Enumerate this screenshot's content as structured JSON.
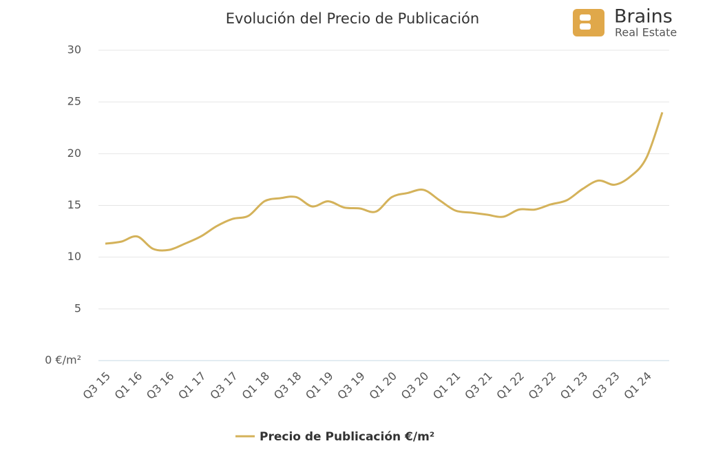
{
  "chart_data": {
    "type": "line",
    "title": "Evolución del Precio de Publicación",
    "categories": [
      "Q3 15",
      null,
      "Q1 16",
      null,
      "Q3 16",
      null,
      "Q1 17",
      null,
      "Q3 17",
      null,
      "Q1 18",
      null,
      "Q3 18",
      null,
      "Q1 19",
      null,
      "Q3 19",
      null,
      "Q1 20",
      null,
      "Q3 20",
      null,
      "Q1 21",
      null,
      "Q3 21",
      null,
      "Q1 22",
      null,
      "Q3 22",
      null,
      "Q1 23",
      null,
      "Q3 23",
      null,
      "Q1 24",
      null
    ],
    "series": [
      {
        "name": "Precio de Publicación €/m²",
        "color": "#d4b25a",
        "values": [
          11.3,
          11.5,
          12.0,
          10.8,
          10.7,
          11.3,
          12.0,
          13.0,
          13.7,
          14.0,
          15.4,
          15.7,
          15.8,
          14.9,
          15.4,
          14.8,
          14.7,
          14.4,
          15.8,
          16.2,
          16.5,
          15.5,
          14.5,
          14.3,
          14.1,
          13.9,
          14.6,
          14.6,
          15.1,
          15.5,
          16.6,
          17.4,
          17.0,
          17.8,
          19.6,
          24.0
        ]
      }
    ],
    "ylim": [
      0,
      30
    ],
    "yticks": [
      {
        "value": 0,
        "label": "0 €/m²"
      },
      5,
      10,
      15,
      20,
      25,
      30
    ],
    "grid": true
  },
  "logo": {
    "name": "Brains",
    "tagline": "Real Estate"
  }
}
